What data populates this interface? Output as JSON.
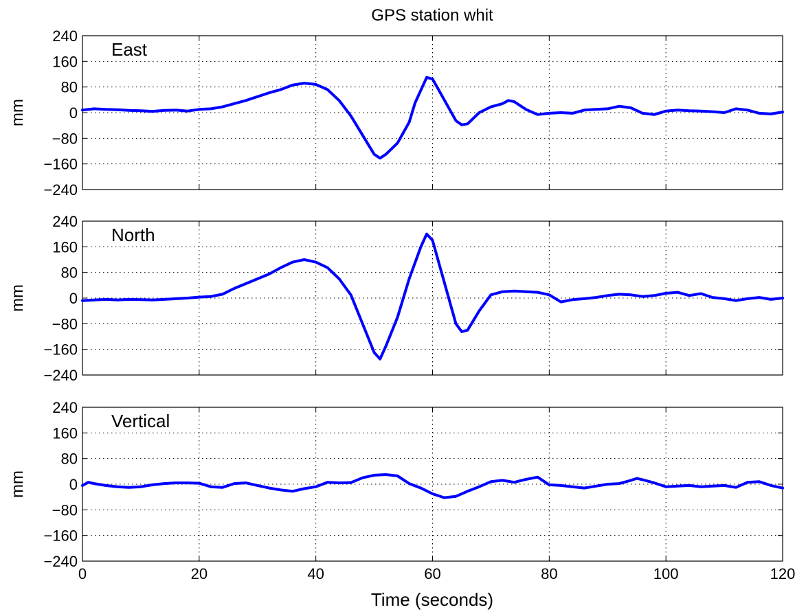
{
  "chart_data": {
    "type": "line",
    "title": "GPS station whit",
    "xlabel": "Time (seconds)",
    "xlim": [
      0,
      120
    ],
    "xticks": [
      0,
      20,
      40,
      60,
      80,
      100,
      120
    ],
    "xtick_labels": [
      "0",
      "20",
      "40",
      "60",
      "80",
      "100",
      "120"
    ],
    "ylabel": "mm",
    "ylim": [
      -240,
      240
    ],
    "yticks": [
      240,
      160,
      80,
      0,
      -80,
      -160,
      -240
    ],
    "ytick_labels": [
      "240",
      "160",
      "80",
      "0",
      "−80",
      "−160",
      "−240"
    ],
    "grid": true,
    "line_color": "#0000ff",
    "panels": [
      {
        "name": "East",
        "x": [
          0,
          2,
          4,
          6,
          8,
          10,
          12,
          14,
          16,
          18,
          20,
          22,
          24,
          26,
          28,
          30,
          32,
          34,
          36,
          38,
          40,
          42,
          44,
          46,
          48,
          50,
          51,
          52,
          54,
          56,
          57,
          58,
          59,
          60,
          62,
          64,
          65,
          66,
          68,
          70,
          72,
          73,
          74,
          76,
          78,
          80,
          82,
          84,
          86,
          88,
          90,
          92,
          94,
          96,
          98,
          100,
          102,
          104,
          106,
          108,
          110,
          112,
          114,
          116,
          118,
          120
        ],
        "y": [
          8,
          12,
          10,
          9,
          7,
          6,
          4,
          7,
          8,
          5,
          10,
          12,
          18,
          28,
          38,
          50,
          62,
          72,
          86,
          92,
          88,
          72,
          38,
          -10,
          -70,
          -130,
          -142,
          -130,
          -95,
          -30,
          30,
          70,
          110,
          105,
          40,
          -25,
          -38,
          -35,
          0,
          18,
          28,
          38,
          34,
          10,
          -6,
          -2,
          0,
          -2,
          8,
          10,
          12,
          20,
          15,
          -2,
          -6,
          5,
          8,
          6,
          5,
          3,
          0,
          12,
          8,
          -2,
          -4,
          2
        ]
      },
      {
        "name": "North",
        "x": [
          0,
          2,
          4,
          6,
          8,
          10,
          12,
          14,
          16,
          18,
          20,
          22,
          24,
          26,
          28,
          30,
          32,
          34,
          36,
          38,
          40,
          42,
          44,
          46,
          48,
          50,
          51,
          52,
          54,
          56,
          58,
          59,
          60,
          62,
          64,
          65,
          66,
          68,
          70,
          72,
          74,
          76,
          78,
          80,
          82,
          84,
          86,
          88,
          90,
          92,
          94,
          96,
          98,
          100,
          102,
          104,
          106,
          108,
          110,
          112,
          114,
          116,
          118,
          120
        ],
        "y": [
          -8,
          -6,
          -4,
          -6,
          -4,
          -5,
          -6,
          -4,
          -2,
          0,
          3,
          5,
          12,
          30,
          45,
          60,
          75,
          95,
          112,
          120,
          112,
          95,
          60,
          10,
          -80,
          -170,
          -190,
          -150,
          -60,
          60,
          160,
          200,
          180,
          50,
          -80,
          -105,
          -100,
          -40,
          10,
          20,
          22,
          20,
          18,
          10,
          -12,
          -5,
          -2,
          2,
          8,
          12,
          10,
          5,
          8,
          15,
          18,
          8,
          14,
          2,
          -2,
          -8,
          -2,
          2,
          -4,
          0
        ]
      },
      {
        "name": "Vertical",
        "x": [
          0,
          1,
          2,
          4,
          6,
          8,
          10,
          12,
          14,
          16,
          18,
          20,
          22,
          24,
          26,
          28,
          30,
          32,
          34,
          36,
          38,
          40,
          42,
          44,
          46,
          48,
          50,
          52,
          54,
          56,
          58,
          60,
          62,
          64,
          66,
          68,
          70,
          72,
          74,
          76,
          78,
          80,
          82,
          84,
          86,
          88,
          90,
          92,
          94,
          95,
          96,
          98,
          100,
          102,
          104,
          106,
          108,
          110,
          112,
          114,
          116,
          118,
          120
        ],
        "y": [
          -4,
          6,
          2,
          -4,
          -8,
          -10,
          -8,
          -2,
          2,
          4,
          4,
          3,
          -8,
          -10,
          2,
          4,
          -4,
          -12,
          -18,
          -22,
          -14,
          -8,
          6,
          4,
          5,
          20,
          28,
          30,
          26,
          2,
          -12,
          -30,
          -42,
          -38,
          -22,
          -8,
          8,
          12,
          6,
          15,
          22,
          -2,
          -4,
          -8,
          -12,
          -6,
          0,
          2,
          12,
          18,
          14,
          4,
          -8,
          -6,
          -4,
          -8,
          -6,
          -4,
          -10,
          6,
          8,
          -4,
          -12
        ]
      }
    ]
  }
}
